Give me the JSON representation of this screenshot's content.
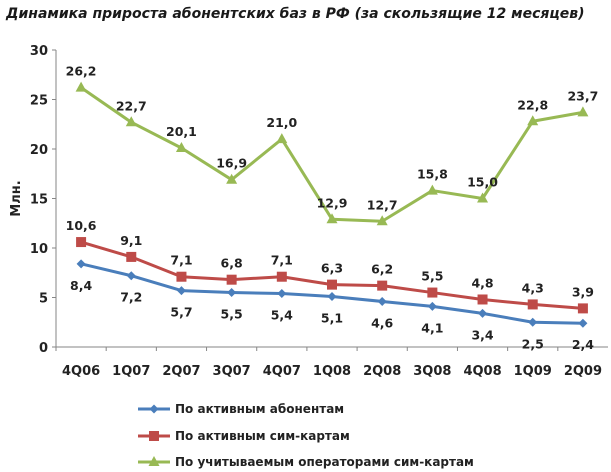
{
  "chart_data": {
    "type": "line",
    "title": "Динамика прироста абонентских баз в РФ (за скользящие 12 месяцев)",
    "ylabel": "Млн.",
    "ylim": [
      0,
      30
    ],
    "yticks": [
      "0",
      "5",
      "10",
      "15",
      "20",
      "25",
      "30"
    ],
    "categories": [
      "4Q06",
      "1Q07",
      "2Q07",
      "3Q07",
      "4Q07",
      "1Q08",
      "2Q08",
      "3Q08",
      "4Q08",
      "1Q09",
      "2Q09"
    ],
    "grid": false,
    "legend_position": "bottom",
    "series": [
      {
        "name": "По активным абонентам",
        "color": "#4a7ebb",
        "marker": "diamond",
        "values": [
          8.4,
          7.2,
          5.7,
          5.5,
          5.4,
          5.1,
          4.6,
          4.1,
          3.4,
          2.5,
          2.4
        ],
        "labels": [
          "8,4",
          "7,2",
          "5,7",
          "5,5",
          "5,4",
          "5,1",
          "4,6",
          "4,1",
          "3,4",
          "2,5",
          "2,4"
        ]
      },
      {
        "name": "По активным сим-картам",
        "color": "#be4b48",
        "marker": "square",
        "values": [
          10.6,
          9.1,
          7.1,
          6.8,
          7.1,
          6.3,
          6.2,
          5.5,
          4.8,
          4.3,
          3.9
        ],
        "labels": [
          "10,6",
          "9,1",
          "7,1",
          "6,8",
          "7,1",
          "6,3",
          "6,2",
          "5,5",
          "4,8",
          "4,3",
          "3,9"
        ]
      },
      {
        "name": "По учитываемым операторами сим-картам",
        "color": "#98b954",
        "marker": "triangle",
        "values": [
          26.2,
          22.7,
          20.1,
          16.9,
          21.0,
          12.9,
          12.7,
          15.8,
          15.0,
          22.8,
          23.7
        ],
        "labels": [
          "26,2",
          "22,7",
          "20,1",
          "16,9",
          "21,0",
          "12,9",
          "12,7",
          "15,8",
          "15,0",
          "22,8",
          "23,7"
        ]
      }
    ]
  }
}
